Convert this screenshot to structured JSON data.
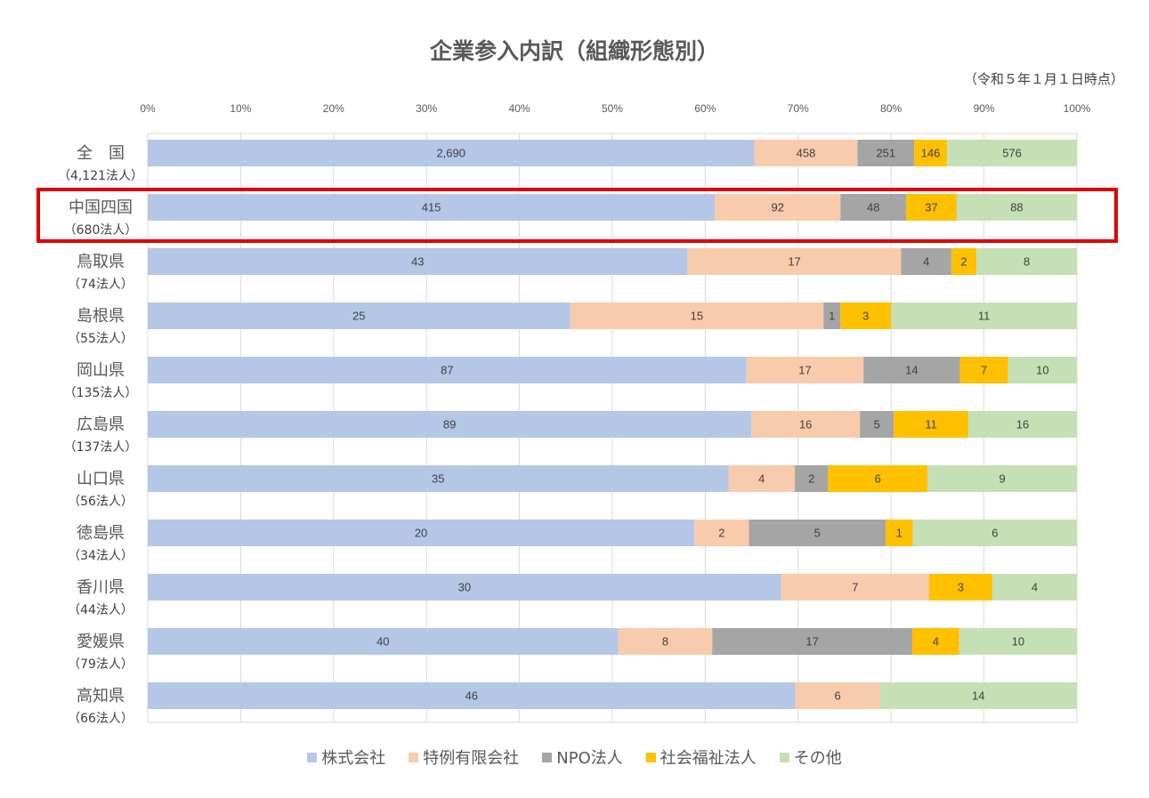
{
  "chart_data": {
    "type": "bar",
    "orientation": "horizontal",
    "stacked": "percent",
    "title": "企業参入内訳（組織形態別）",
    "subtitle": "（令和５年１月１日時点）",
    "xlim": [
      0,
      100
    ],
    "x_ticks": [
      "0%",
      "10%",
      "20%",
      "30%",
      "40%",
      "50%",
      "60%",
      "70%",
      "80%",
      "90%",
      "100%"
    ],
    "grid": true,
    "legend_position": "bottom",
    "categories": [
      {
        "name": "全　国",
        "total": "（4,121法人）"
      },
      {
        "name": "中国四国",
        "total": "（680法人）"
      },
      {
        "name": "鳥取県",
        "total": "（74法人）"
      },
      {
        "name": "島根県",
        "total": "（55法人）"
      },
      {
        "name": "岡山県",
        "total": "（135法人）"
      },
      {
        "name": "広島県",
        "total": "（137法人）"
      },
      {
        "name": "山口県",
        "total": "（56法人）"
      },
      {
        "name": "徳島県",
        "total": "（34法人）"
      },
      {
        "name": "香川県",
        "total": "（44法人）"
      },
      {
        "name": "愛媛県",
        "total": "（79法人）"
      },
      {
        "name": "高知県",
        "total": "（66法人）"
      }
    ],
    "series": [
      {
        "name": "株式会社",
        "color": "#b4c7e7",
        "values": [
          2690,
          415,
          43,
          25,
          87,
          89,
          35,
          20,
          30,
          40,
          46
        ]
      },
      {
        "name": "特例有限会社",
        "color": "#f8cbad",
        "values": [
          458,
          92,
          17,
          15,
          17,
          16,
          4,
          2,
          7,
          8,
          6
        ]
      },
      {
        "name": "NPO法人",
        "color": "#a5a5a5",
        "values": [
          251,
          48,
          4,
          1,
          14,
          5,
          2,
          5,
          0,
          17,
          0
        ]
      },
      {
        "name": "社会福祉法人",
        "color": "#ffc000",
        "values": [
          146,
          37,
          2,
          3,
          7,
          11,
          6,
          1,
          3,
          4,
          0
        ]
      },
      {
        "name": "その他",
        "color": "#c5e0b4",
        "values": [
          576,
          88,
          8,
          11,
          10,
          16,
          9,
          6,
          4,
          10,
          14
        ]
      }
    ],
    "highlighted_category": "中国四国",
    "highlight_color": "#e00000"
  }
}
